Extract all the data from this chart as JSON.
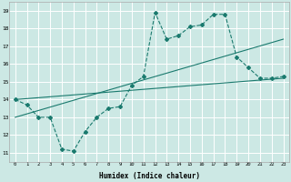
{
  "xlabel": "Humidex (Indice chaleur)",
  "bg_color": "#cce8e4",
  "grid_color": "#ffffff",
  "line_color": "#1a7a6e",
  "xlim": [
    -0.5,
    23.5
  ],
  "ylim": [
    10.5,
    19.5
  ],
  "xticks": [
    0,
    1,
    2,
    3,
    4,
    5,
    6,
    7,
    8,
    9,
    10,
    11,
    12,
    13,
    14,
    15,
    16,
    17,
    18,
    19,
    20,
    21,
    22,
    23
  ],
  "yticks": [
    11,
    12,
    13,
    14,
    15,
    16,
    17,
    18,
    19
  ],
  "line1_x": [
    0,
    1,
    2,
    3,
    4,
    5,
    6,
    7,
    8,
    9,
    10,
    11,
    12,
    13,
    14,
    15,
    16,
    17,
    18,
    19,
    20,
    21,
    22,
    23
  ],
  "line1_y": [
    14.0,
    13.7,
    13.0,
    13.0,
    11.2,
    11.1,
    12.2,
    13.0,
    13.5,
    13.6,
    14.8,
    15.3,
    18.9,
    17.4,
    17.6,
    18.1,
    18.2,
    18.8,
    18.8,
    16.4,
    15.8,
    15.2,
    15.2,
    15.3
  ],
  "line2_x": [
    0,
    23
  ],
  "line2_y": [
    14.0,
    15.2
  ],
  "line3_x": [
    0,
    23
  ],
  "line3_y": [
    13.0,
    17.4
  ]
}
